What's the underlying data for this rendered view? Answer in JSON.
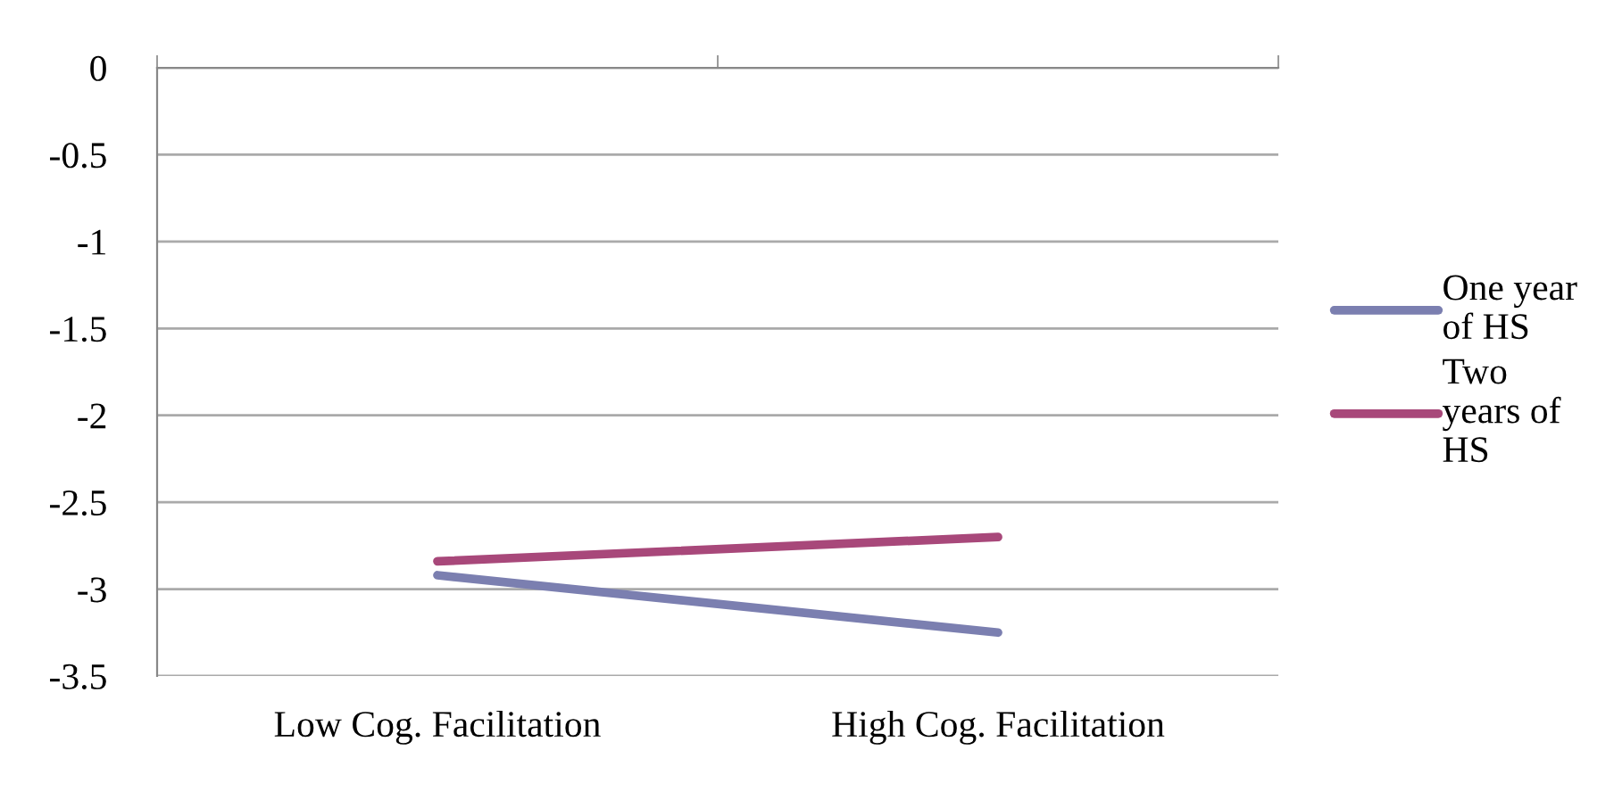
{
  "chart_data": {
    "type": "line",
    "categories": [
      "Low Cog. Facilitation",
      "High Cog. Facilitation"
    ],
    "series": [
      {
        "name": "One year of HS",
        "color": "#7b7fb0",
        "values": [
          -2.92,
          -3.25
        ]
      },
      {
        "name": "Two years of HS",
        "color": "#a8487a",
        "values": [
          -2.84,
          -2.7
        ]
      }
    ],
    "ylim": [
      -3.5,
      0
    ],
    "yticks": [
      0,
      -0.5,
      -1,
      -1.5,
      -2,
      -2.5,
      -3,
      -3.5
    ],
    "grid": "y",
    "legend": "right",
    "marker": "none",
    "line_style": "solid"
  }
}
